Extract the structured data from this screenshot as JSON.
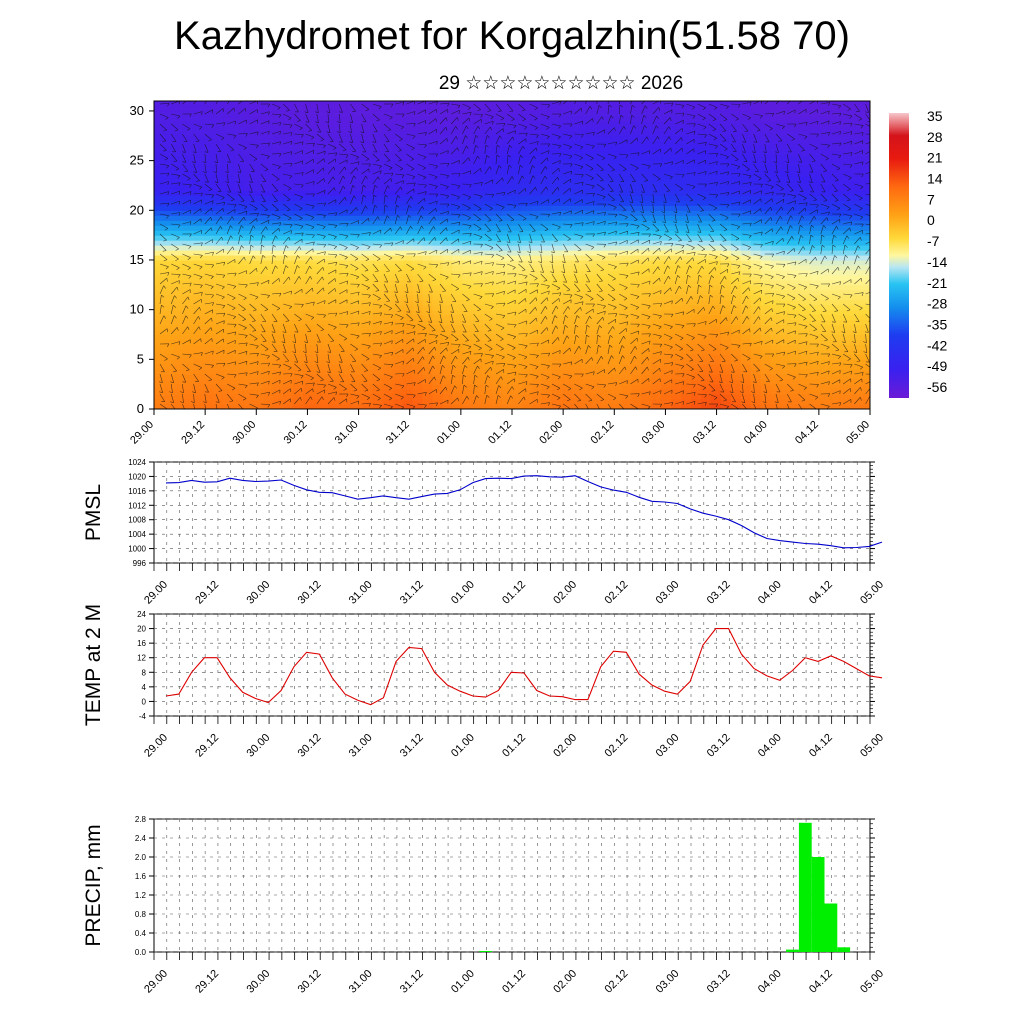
{
  "header": {
    "title": "Kazhydromet for Korgalzhin(51.58 70)",
    "subtitle": "29 ☆☆☆☆☆☆☆☆☆☆ 2026"
  },
  "colors": {
    "pmsl_line": "#0000cc",
    "temp_line": "#dd0000",
    "precip_bar": "#00ee00",
    "barb": "#111111"
  },
  "x_ticks": [
    "29.00",
    "29.12",
    "30.00",
    "30.12",
    "31.00",
    "31.12",
    "01.00",
    "01.12",
    "02.00",
    "02.12",
    "03.00",
    "03.12",
    "04.00",
    "04.12",
    "05.00"
  ],
  "chart_data": [
    {
      "type": "heatmap",
      "title": "",
      "xlabel": "",
      "ylabel": "",
      "ylim": [
        0,
        31
      ],
      "y_ticks": [
        0,
        5,
        10,
        15,
        20,
        25,
        30
      ],
      "colorbar_labels": [
        "35",
        "28",
        "21",
        "14",
        "7",
        "0",
        "-7",
        "-14",
        "-21",
        "-28",
        "-35",
        "-42",
        "-49",
        "-56"
      ],
      "colorbar_range": [
        -63,
        40
      ],
      "description_note": "",
      "temperature_profile_at_times": {
        "x": [
          0,
          1,
          2,
          3,
          4,
          5,
          6,
          7,
          8,
          9,
          10,
          11,
          12,
          13,
          14
        ],
        "surface": [
          10,
          12,
          11,
          14,
          13,
          16,
          11,
          9,
          12,
          10,
          14,
          18,
          12,
          10,
          11
        ],
        "level15": [
          -5,
          -5,
          -6,
          -6,
          -7,
          -6,
          -9,
          -10,
          -8,
          -7,
          -6,
          -6,
          -12,
          -14,
          -14
        ],
        "level22": [
          -52,
          -53,
          -55,
          -55,
          -55,
          -54,
          -52,
          -48,
          -47,
          -47,
          -47,
          -48,
          -50,
          -52,
          -54
        ],
        "level30": [
          -58,
          -58,
          -59,
          -60,
          -60,
          -60,
          -60,
          -59,
          -58,
          -58,
          -58,
          -58,
          -60,
          -60,
          -60
        ]
      }
    },
    {
      "type": "line",
      "name": "PMSL",
      "ylabel": "PMSL",
      "ylim": [
        996,
        1024
      ],
      "y_ticks": [
        "996",
        "1000",
        "1004",
        "1008",
        "1012",
        "1016",
        "1020",
        "1024"
      ],
      "x": [
        0,
        0.25,
        0.5,
        0.75,
        1,
        1.25,
        1.5,
        1.75,
        2,
        2.25,
        2.5,
        2.75,
        3,
        3.25,
        3.5,
        3.75,
        4,
        4.25,
        4.5,
        4.75,
        5,
        5.25,
        5.5,
        5.75,
        6,
        6.25,
        6.5,
        6.75,
        7,
        7.25,
        7.5,
        7.75,
        8,
        8.25,
        8.5,
        8.75,
        9,
        9.25,
        9.5,
        9.75,
        10,
        10.25,
        10.5,
        10.75,
        11,
        11.25,
        11.5,
        11.75,
        12,
        12.25,
        12.5,
        12.75,
        13,
        13.25,
        13.5,
        13.75,
        14
      ],
      "values": [
        1018.2,
        1018.3,
        1018.9,
        1018.4,
        1018.5,
        1019.5,
        1018.9,
        1018.6,
        1018.7,
        1019.0,
        1017.5,
        1016.3,
        1015.6,
        1015.5,
        1014.6,
        1013.7,
        1014.1,
        1014.6,
        1014.1,
        1013.7,
        1014.4,
        1015.1,
        1015.3,
        1016.3,
        1018.3,
        1019.4,
        1019.5,
        1019.4,
        1020.1,
        1020.2,
        1019.9,
        1019.8,
        1020.2,
        1018.6,
        1017.1,
        1016.2,
        1015.6,
        1014.2,
        1013.1,
        1012.9,
        1012.5,
        1011.0,
        1009.8,
        1009.0,
        1008.0,
        1006.4,
        1004.4,
        1002.8,
        1002.2,
        1001.8,
        1001.4,
        1001.2,
        1000.8,
        1000.2,
        1000.3,
        1000.6,
        1001.8
      ]
    },
    {
      "type": "line",
      "name": "TEMP at 2 M",
      "ylabel": "TEMP at 2 M",
      "ylim": [
        -4,
        24
      ],
      "y_ticks": [
        "-4",
        "0",
        "4",
        "8",
        "12",
        "16",
        "20",
        "24"
      ],
      "x": [
        0,
        0.25,
        0.5,
        0.75,
        1,
        1.25,
        1.5,
        1.75,
        2,
        2.25,
        2.5,
        2.75,
        3,
        3.25,
        3.5,
        3.75,
        4,
        4.25,
        4.5,
        4.75,
        5,
        5.25,
        5.5,
        5.75,
        6,
        6.25,
        6.5,
        6.75,
        7,
        7.25,
        7.5,
        7.75,
        8,
        8.25,
        8.5,
        8.75,
        9,
        9.25,
        9.5,
        9.75,
        10,
        10.25,
        10.5,
        10.75,
        11,
        11.25,
        11.5,
        11.75,
        12,
        12.25,
        12.5,
        12.75,
        13,
        13.25,
        13.5,
        13.75,
        14
      ],
      "values": [
        1.5,
        2.0,
        8.0,
        12.0,
        12.0,
        6.5,
        2.5,
        0.8,
        -0.3,
        3.0,
        9.5,
        13.5,
        13.0,
        6.5,
        2.0,
        0.3,
        -0.9,
        1.0,
        11.0,
        14.8,
        14.5,
        8.0,
        4.5,
        2.8,
        1.5,
        1.2,
        3.0,
        8.0,
        7.8,
        3.0,
        1.5,
        1.3,
        0.5,
        0.5,
        9.5,
        13.8,
        13.5,
        7.5,
        4.5,
        2.8,
        2.0,
        5.5,
        15.5,
        20.0,
        20.0,
        13.0,
        9.0,
        7.0,
        5.8,
        8.5,
        12.0,
        11.0,
        12.5,
        11.0,
        9.0,
        7.0,
        6.5
      ]
    },
    {
      "type": "bar",
      "name": "PRECIP, mm",
      "ylabel": "PRECIP, mm",
      "ylim": [
        0,
        2.8
      ],
      "y_ticks": [
        "0.0",
        "0.4",
        "0.8",
        "1.2",
        "1.6",
        "2.0",
        "2.4",
        "2.8"
      ],
      "bars": [
        {
          "x": 6.25,
          "value": 0.02
        },
        {
          "x": 12.25,
          "value": 0.05
        },
        {
          "x": 12.5,
          "value": 2.72
        },
        {
          "x": 12.75,
          "value": 2.0
        },
        {
          "x": 13.0,
          "value": 1.02
        },
        {
          "x": 13.25,
          "value": 0.1
        }
      ]
    }
  ]
}
